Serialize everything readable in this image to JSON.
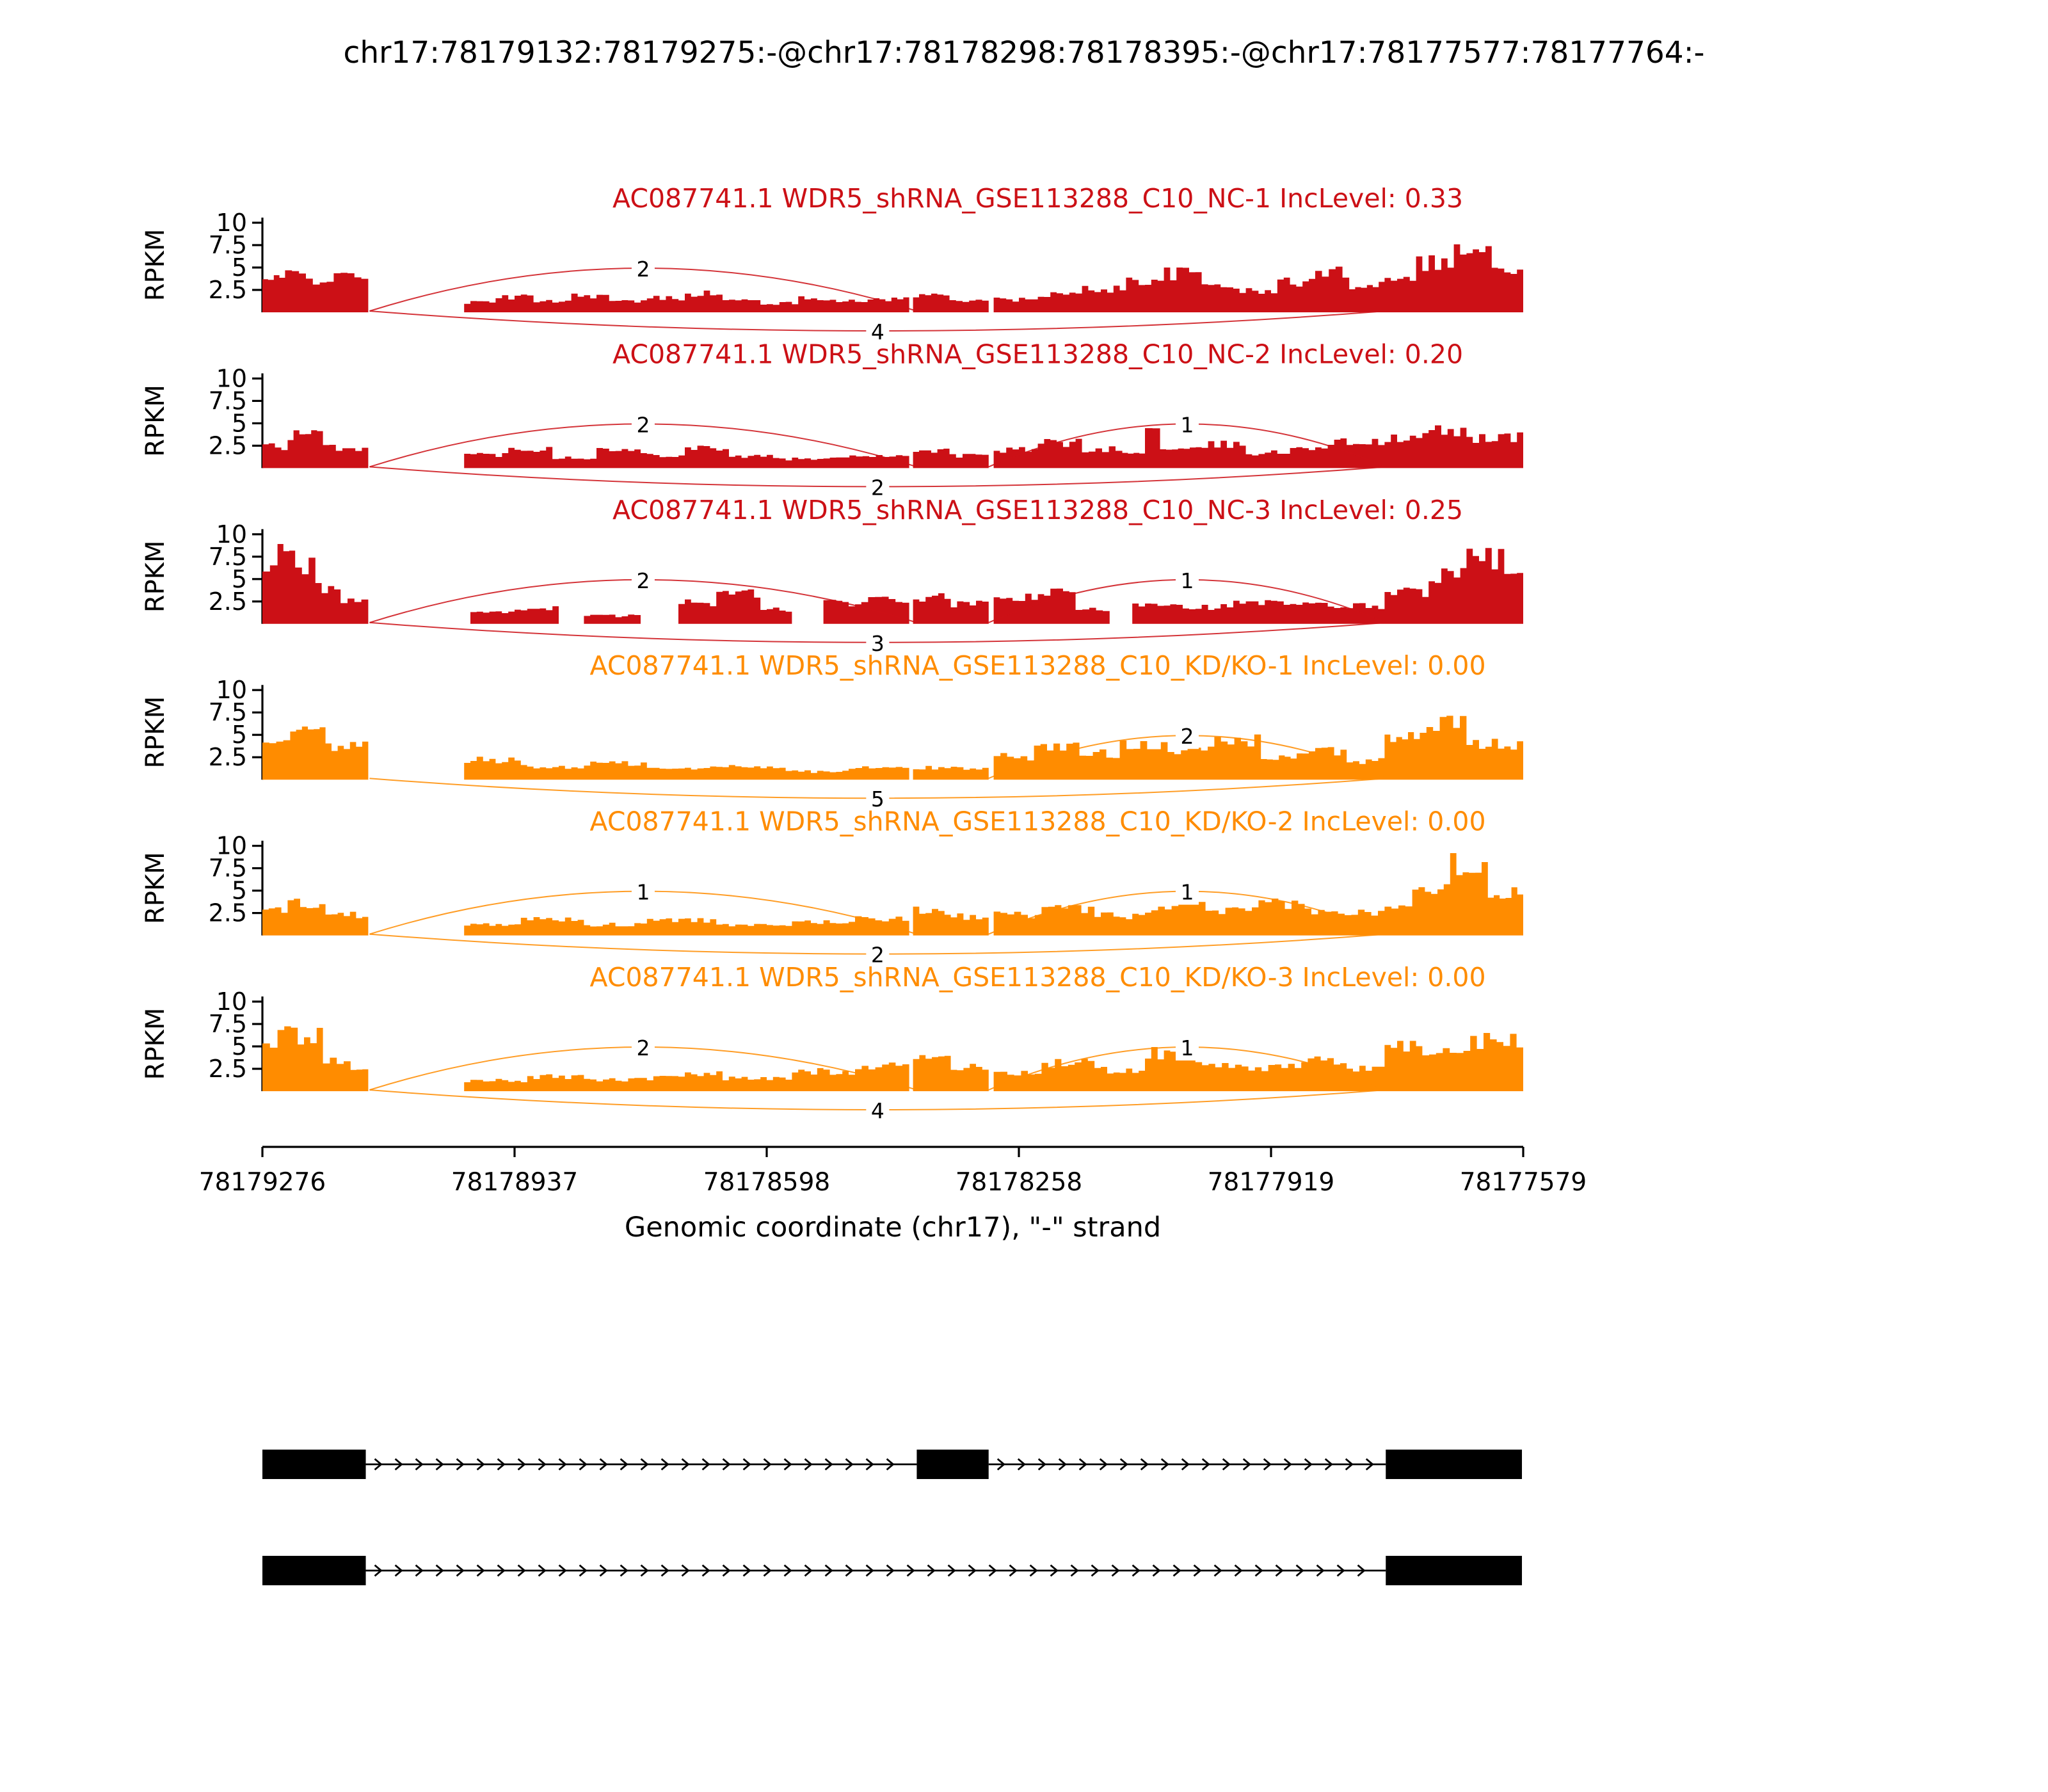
{
  "title": "chr17:78179132:78179275:-@chr17:78178298:78178395:-@chr17:78177577:78177764:-",
  "colors": {
    "nc": "#CC1016",
    "kd": "#FF8C00"
  },
  "y_axis": {
    "label": "RPKM",
    "ticks": [
      2.5,
      5,
      7.5,
      10
    ]
  },
  "x_axis": {
    "label": "Genomic coordinate (chr17), \"-\" strand",
    "ticks": [
      "78179276",
      "78178937",
      "78178598",
      "78178258",
      "78177919",
      "78177579"
    ],
    "start": 78179276,
    "end": 78177579
  },
  "chart_data": {
    "type": "area",
    "subtype": "sashimi-plot",
    "x_units": "fraction of plotted region, left=78179276 to right=78177579 (minus strand)",
    "y_units": "RPKM",
    "tracks": [
      {
        "title": "AC087741.1 WDR5_shRNA_GSE113288_C10_NC-1 IncLevel: 0.33",
        "group": "nc",
        "inc_level": 0.33,
        "coverage": [
          [
            0.0,
            0.018,
            3.6
          ],
          [
            0.018,
            0.04,
            4.3
          ],
          [
            0.04,
            0.062,
            3.7
          ],
          [
            0.062,
            0.084,
            4.1
          ],
          [
            0.16,
            0.185,
            1.1
          ],
          [
            0.185,
            0.215,
            1.7
          ],
          [
            0.215,
            0.245,
            1.3
          ],
          [
            0.245,
            0.275,
            1.9
          ],
          [
            0.275,
            0.305,
            1.2
          ],
          [
            0.305,
            0.335,
            1.6
          ],
          [
            0.335,
            0.365,
            2.1
          ],
          [
            0.365,
            0.395,
            1.3
          ],
          [
            0.395,
            0.425,
            1.0
          ],
          [
            0.425,
            0.455,
            1.6
          ],
          [
            0.455,
            0.48,
            1.2
          ],
          [
            0.48,
            0.513,
            1.5
          ],
          [
            0.516,
            0.545,
            1.9
          ],
          [
            0.545,
            0.576,
            1.4
          ],
          [
            0.58,
            0.615,
            1.4
          ],
          [
            0.615,
            0.65,
            2.0
          ],
          [
            0.65,
            0.685,
            2.6
          ],
          [
            0.685,
            0.715,
            3.6
          ],
          [
            0.715,
            0.745,
            4.3
          ],
          [
            0.745,
            0.775,
            3.1
          ],
          [
            0.775,
            0.805,
            2.3
          ],
          [
            0.805,
            0.835,
            3.4
          ],
          [
            0.835,
            0.862,
            4.4
          ],
          [
            0.862,
            0.89,
            3.1
          ],
          [
            0.89,
            0.915,
            4.2
          ],
          [
            0.915,
            0.945,
            5.6
          ],
          [
            0.945,
            0.975,
            6.9
          ],
          [
            0.975,
            1.0,
            4.6
          ]
        ],
        "junctions": [
          {
            "from": 0.085,
            "to": 0.519,
            "count": 2,
            "side": "top"
          },
          {
            "from": 0.085,
            "to": 0.891,
            "count": 4,
            "side": "bottom"
          }
        ]
      },
      {
        "title": "AC087741.1 WDR5_shRNA_GSE113288_C10_NC-2 IncLevel: 0.20",
        "group": "nc",
        "inc_level": 0.2,
        "coverage": [
          [
            0.0,
            0.02,
            2.4
          ],
          [
            0.02,
            0.048,
            3.7
          ],
          [
            0.048,
            0.084,
            2.3
          ],
          [
            0.16,
            0.195,
            1.5
          ],
          [
            0.195,
            0.23,
            2.2
          ],
          [
            0.23,
            0.265,
            1.2
          ],
          [
            0.265,
            0.3,
            2.0
          ],
          [
            0.3,
            0.335,
            1.5
          ],
          [
            0.335,
            0.37,
            2.3
          ],
          [
            0.37,
            0.41,
            1.3
          ],
          [
            0.41,
            0.455,
            1.0
          ],
          [
            0.455,
            0.513,
            1.4
          ],
          [
            0.516,
            0.545,
            2.0
          ],
          [
            0.545,
            0.576,
            1.4
          ],
          [
            0.58,
            0.615,
            2.0
          ],
          [
            0.615,
            0.65,
            2.8
          ],
          [
            0.65,
            0.682,
            2.1
          ],
          [
            0.682,
            0.7,
            1.6
          ],
          [
            0.7,
            0.712,
            5.0
          ],
          [
            0.712,
            0.745,
            2.0
          ],
          [
            0.745,
            0.78,
            2.6
          ],
          [
            0.78,
            0.815,
            1.7
          ],
          [
            0.815,
            0.85,
            2.4
          ],
          [
            0.85,
            0.89,
            2.9
          ],
          [
            0.89,
            0.92,
            3.2
          ],
          [
            0.92,
            0.955,
            4.1
          ],
          [
            0.955,
            1.0,
            3.4
          ]
        ],
        "junctions": [
          {
            "from": 0.085,
            "to": 0.519,
            "count": 2,
            "side": "top"
          },
          {
            "from": 0.576,
            "to": 0.891,
            "count": 1,
            "side": "top"
          },
          {
            "from": 0.085,
            "to": 0.891,
            "count": 2,
            "side": "bottom"
          }
        ]
      },
      {
        "title": "AC087741.1 WDR5_shRNA_GSE113288_C10_NC-3 IncLevel: 0.25",
        "group": "nc",
        "inc_level": 0.25,
        "coverage": [
          [
            0.0,
            0.012,
            6.2
          ],
          [
            0.012,
            0.026,
            8.6
          ],
          [
            0.026,
            0.042,
            6.4
          ],
          [
            0.042,
            0.062,
            4.1
          ],
          [
            0.062,
            0.084,
            2.6
          ],
          [
            0.165,
            0.2,
            1.2
          ],
          [
            0.2,
            0.235,
            1.8
          ],
          [
            0.255,
            0.3,
            0.9
          ],
          [
            0.33,
            0.36,
            2.4
          ],
          [
            0.36,
            0.395,
            3.4
          ],
          [
            0.395,
            0.42,
            1.6
          ],
          [
            0.445,
            0.475,
            2.3
          ],
          [
            0.475,
            0.513,
            2.6
          ],
          [
            0.516,
            0.546,
            2.9
          ],
          [
            0.546,
            0.576,
            2.2
          ],
          [
            0.58,
            0.615,
            2.9
          ],
          [
            0.615,
            0.645,
            3.4
          ],
          [
            0.645,
            0.672,
            1.6
          ],
          [
            0.69,
            0.73,
            2.3
          ],
          [
            0.73,
            0.77,
            1.9
          ],
          [
            0.77,
            0.81,
            2.3
          ],
          [
            0.81,
            0.85,
            2.1
          ],
          [
            0.85,
            0.89,
            2.0
          ],
          [
            0.89,
            0.925,
            3.6
          ],
          [
            0.925,
            0.955,
            5.4
          ],
          [
            0.955,
            0.985,
            7.4
          ],
          [
            0.985,
            1.0,
            5.1
          ]
        ],
        "junctions": [
          {
            "from": 0.085,
            "to": 0.519,
            "count": 2,
            "side": "top"
          },
          {
            "from": 0.576,
            "to": 0.891,
            "count": 1,
            "side": "top"
          },
          {
            "from": 0.085,
            "to": 0.891,
            "count": 3,
            "side": "bottom"
          }
        ]
      },
      {
        "title": "AC087741.1 WDR5_shRNA_GSE113288_C10_KD/KO-1 IncLevel: 0.00",
        "group": "kd",
        "inc_level": 0.0,
        "coverage": [
          [
            0.0,
            0.022,
            4.1
          ],
          [
            0.022,
            0.05,
            5.1
          ],
          [
            0.05,
            0.084,
            3.6
          ],
          [
            0.16,
            0.205,
            2.2
          ],
          [
            0.205,
            0.255,
            1.4
          ],
          [
            0.255,
            0.305,
            1.8
          ],
          [
            0.305,
            0.355,
            1.2
          ],
          [
            0.355,
            0.415,
            1.5
          ],
          [
            0.415,
            0.465,
            0.9
          ],
          [
            0.465,
            0.513,
            1.3
          ],
          [
            0.516,
            0.576,
            1.3
          ],
          [
            0.58,
            0.612,
            2.6
          ],
          [
            0.612,
            0.648,
            3.6
          ],
          [
            0.648,
            0.68,
            2.9
          ],
          [
            0.68,
            0.718,
            4.1
          ],
          [
            0.718,
            0.755,
            3.3
          ],
          [
            0.755,
            0.792,
            4.3
          ],
          [
            0.792,
            0.825,
            2.6
          ],
          [
            0.825,
            0.86,
            3.1
          ],
          [
            0.86,
            0.89,
            2.1
          ],
          [
            0.89,
            0.918,
            4.6
          ],
          [
            0.918,
            0.955,
            6.1
          ],
          [
            0.955,
            1.0,
            3.9
          ]
        ],
        "junctions": [
          {
            "from": 0.576,
            "to": 0.891,
            "count": 2,
            "side": "top"
          },
          {
            "from": 0.085,
            "to": 0.891,
            "count": 5,
            "side": "bottom"
          }
        ]
      },
      {
        "title": "AC087741.1 WDR5_shRNA_GSE113288_C10_KD/KO-2 IncLevel: 0.00",
        "group": "kd",
        "inc_level": 0.0,
        "coverage": [
          [
            0.0,
            0.02,
            2.9
          ],
          [
            0.02,
            0.05,
            3.6
          ],
          [
            0.05,
            0.084,
            2.3
          ],
          [
            0.16,
            0.205,
            1.3
          ],
          [
            0.205,
            0.255,
            1.8
          ],
          [
            0.255,
            0.305,
            1.2
          ],
          [
            0.305,
            0.36,
            1.7
          ],
          [
            0.36,
            0.42,
            1.1
          ],
          [
            0.42,
            0.47,
            1.5
          ],
          [
            0.47,
            0.513,
            1.9
          ],
          [
            0.516,
            0.546,
            2.8
          ],
          [
            0.546,
            0.576,
            2.1
          ],
          [
            0.58,
            0.618,
            2.3
          ],
          [
            0.618,
            0.66,
            2.9
          ],
          [
            0.66,
            0.705,
            2.2
          ],
          [
            0.705,
            0.748,
            3.3
          ],
          [
            0.748,
            0.79,
            2.7
          ],
          [
            0.79,
            0.832,
            3.5
          ],
          [
            0.832,
            0.89,
            2.5
          ],
          [
            0.89,
            0.912,
            3.6
          ],
          [
            0.912,
            0.942,
            5.6
          ],
          [
            0.942,
            0.972,
            8.1
          ],
          [
            0.972,
            1.0,
            4.6
          ]
        ],
        "junctions": [
          {
            "from": 0.085,
            "to": 0.519,
            "count": 1,
            "side": "top"
          },
          {
            "from": 0.576,
            "to": 0.891,
            "count": 1,
            "side": "top"
          },
          {
            "from": 0.085,
            "to": 0.891,
            "count": 2,
            "side": "bottom"
          }
        ]
      },
      {
        "title": "AC087741.1 WDR5_shRNA_GSE113288_C10_KD/KO-3 IncLevel: 0.00",
        "group": "kd",
        "inc_level": 0.0,
        "coverage": [
          [
            0.0,
            0.012,
            5.6
          ],
          [
            0.012,
            0.028,
            8.1
          ],
          [
            0.028,
            0.048,
            6.1
          ],
          [
            0.048,
            0.07,
            3.6
          ],
          [
            0.07,
            0.084,
            2.6
          ],
          [
            0.16,
            0.21,
            1.2
          ],
          [
            0.21,
            0.26,
            1.6
          ],
          [
            0.26,
            0.31,
            1.3
          ],
          [
            0.31,
            0.365,
            1.9
          ],
          [
            0.365,
            0.42,
            1.4
          ],
          [
            0.42,
            0.47,
            2.2
          ],
          [
            0.47,
            0.513,
            2.9
          ],
          [
            0.516,
            0.546,
            3.9
          ],
          [
            0.546,
            0.576,
            2.6
          ],
          [
            0.58,
            0.618,
            2.1
          ],
          [
            0.618,
            0.66,
            3.1
          ],
          [
            0.66,
            0.7,
            2.4
          ],
          [
            0.7,
            0.74,
            4.2
          ],
          [
            0.74,
            0.782,
            3.1
          ],
          [
            0.782,
            0.824,
            2.6
          ],
          [
            0.824,
            0.86,
            3.3
          ],
          [
            0.86,
            0.89,
            2.6
          ],
          [
            0.89,
            0.92,
            5.1
          ],
          [
            0.92,
            0.958,
            4.4
          ],
          [
            0.958,
            1.0,
            5.6
          ]
        ],
        "junctions": [
          {
            "from": 0.085,
            "to": 0.519,
            "count": 2,
            "side": "top"
          },
          {
            "from": 0.576,
            "to": 0.891,
            "count": 1,
            "side": "top"
          },
          {
            "from": 0.085,
            "to": 0.891,
            "count": 4,
            "side": "bottom"
          }
        ]
      }
    ],
    "gene_models": [
      {
        "exons": [
          [
            0.0,
            0.082
          ],
          [
            0.519,
            0.576
          ],
          [
            0.891,
            0.999
          ]
        ]
      },
      {
        "exons": [
          [
            0.0,
            0.082
          ],
          [
            0.891,
            0.999
          ]
        ]
      }
    ]
  }
}
